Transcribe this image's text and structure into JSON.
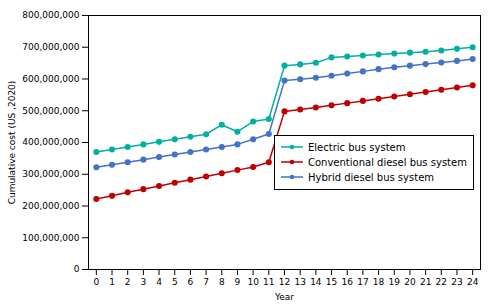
{
  "chart_data": {
    "type": "line",
    "xlabel": "Year",
    "ylabel": "Cumulative cost (US ,2020)",
    "x": [
      0,
      1,
      2,
      3,
      4,
      5,
      6,
      7,
      8,
      9,
      10,
      11,
      12,
      13,
      14,
      15,
      16,
      17,
      18,
      19,
      20,
      21,
      22,
      23,
      24
    ],
    "series": [
      {
        "name": "Electric bus system",
        "color": "#00b0a0",
        "marker": "circle",
        "line_style": "solid",
        "values": [
          370000000,
          378000000,
          386000000,
          394000000,
          402000000,
          410000000,
          418000000,
          426000000,
          456000000,
          434000000,
          466000000,
          474000000,
          642000000,
          646000000,
          651000000,
          668000000,
          671000000,
          674000000,
          677000000,
          680000000,
          683000000,
          686000000,
          690000000,
          695000000,
          700000000
        ]
      },
      {
        "name": "Conventional diesel bus system",
        "color": "#c00000",
        "marker": "circle",
        "line_style": "solid",
        "values": [
          222000000,
          232000000,
          243000000,
          253000000,
          263000000,
          273000000,
          283000000,
          293000000,
          303000000,
          313000000,
          323000000,
          338000000,
          498000000,
          504000000,
          510000000,
          517000000,
          524000000,
          531000000,
          538000000,
          545000000,
          552000000,
          559000000,
          566000000,
          573000000,
          580000000
        ]
      },
      {
        "name": "Hybrid diesel bus system",
        "color": "#4472c4",
        "marker": "circle",
        "line_style": "solid",
        "values": [
          322000000,
          330000000,
          338000000,
          346000000,
          354000000,
          362000000,
          370000000,
          378000000,
          386000000,
          394000000,
          410000000,
          427000000,
          595000000,
          599000000,
          604000000,
          610000000,
          617000000,
          624000000,
          631000000,
          637000000,
          642000000,
          647000000,
          652000000,
          657000000,
          663000000
        ]
      }
    ],
    "xlim": [
      -0.5,
      24.5
    ],
    "xticks": [
      0,
      1,
      2,
      3,
      4,
      5,
      6,
      7,
      8,
      9,
      10,
      11,
      12,
      13,
      14,
      15,
      16,
      17,
      18,
      19,
      20,
      21,
      22,
      23,
      24
    ],
    "ylim": [
      0,
      800000000
    ],
    "yticks": [
      0,
      {
        "value": 100000000,
        "label": "100,000,000"
      },
      {
        "value": 200000000,
        "label": "200,000,000"
      },
      {
        "value": 300000000,
        "label": "300,000,000"
      },
      {
        "value": 400000000,
        "label": "400,000,000"
      },
      {
        "value": 500000000,
        "label": "500,000,000"
      },
      {
        "value": 600000000,
        "label": "600,000,000"
      },
      {
        "value": 700000000,
        "label": "700,000,000"
      },
      {
        "value": 800000000,
        "label": "800,000,000"
      }
    ],
    "grid": false,
    "legend": "right"
  }
}
